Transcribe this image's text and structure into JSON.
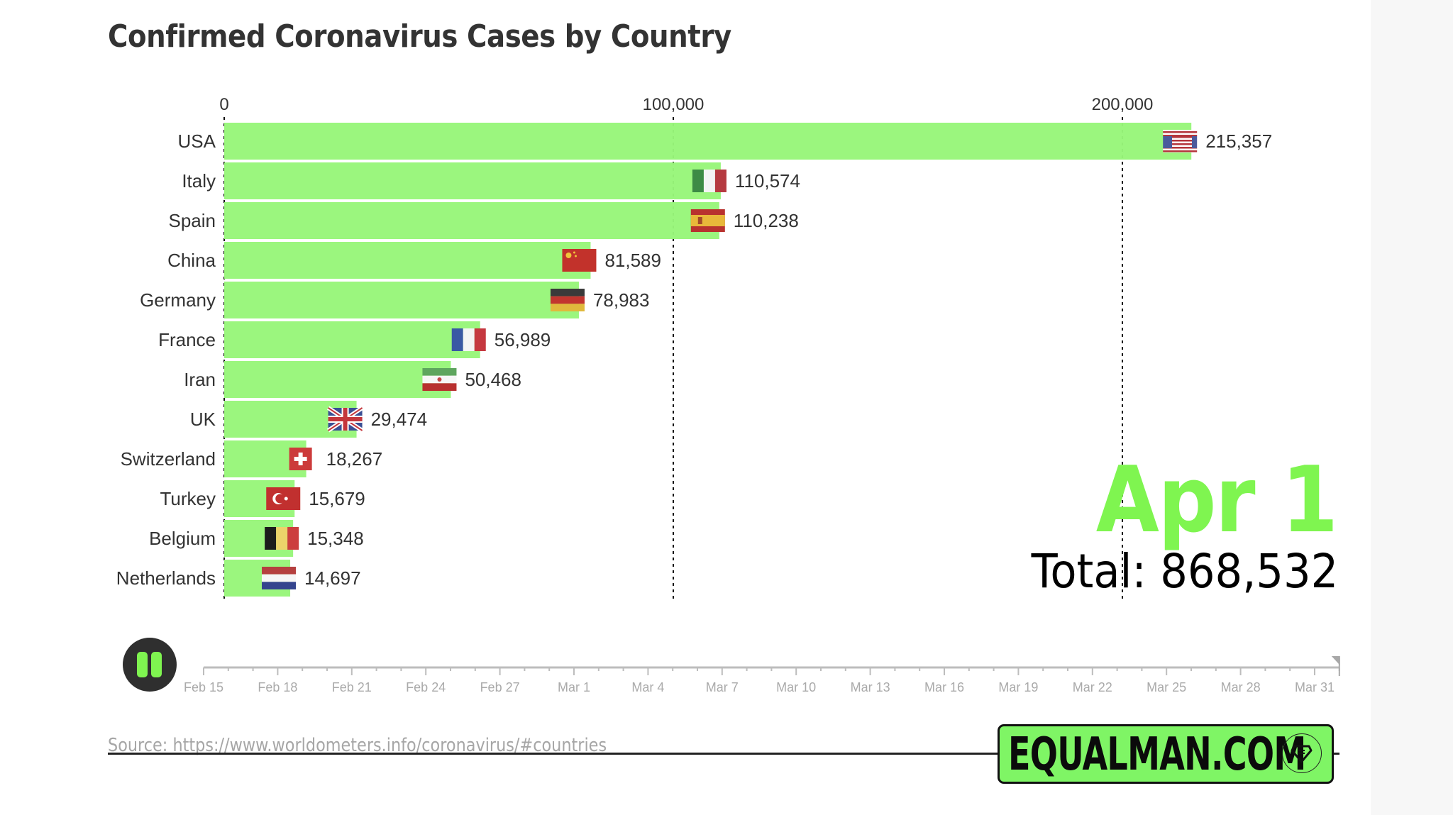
{
  "chart_data": {
    "type": "bar",
    "orientation": "horizontal",
    "title": "Confirmed Coronavirus Cases by Country",
    "categories": [
      "USA",
      "Italy",
      "Spain",
      "China",
      "Germany",
      "France",
      "Iran",
      "UK",
      "Switzerland",
      "Turkey",
      "Belgium",
      "Netherlands"
    ],
    "values": [
      215357,
      110574,
      110238,
      81589,
      78983,
      56989,
      50468,
      29474,
      18267,
      15679,
      15348,
      14697
    ],
    "value_labels": [
      "215,357",
      "110,574",
      "110,238",
      "81,589",
      "78,983",
      "56,989",
      "50,468",
      "29,474",
      "18,267",
      "15,679",
      "15,348",
      "14,697"
    ],
    "flags": [
      "us",
      "it",
      "es",
      "cn",
      "de",
      "fr",
      "ir",
      "gb",
      "ch",
      "tr",
      "be",
      "nl"
    ],
    "xlim": [
      0,
      200000
    ],
    "xticks": [
      0,
      100000,
      200000
    ],
    "xtick_labels": [
      "0",
      "100,000",
      "200,000"
    ],
    "xaxis_position": "top",
    "grid": "dashed vertical at ticks",
    "bar_color": "#98f67a",
    "xlabel": "",
    "ylabel": "",
    "current_date": "Apr 1",
    "total_label": "Total: 868,532",
    "total": 868532
  },
  "timeline": {
    "start_date": "Feb 15",
    "end_date": "Apr 1",
    "current_day_index": 46,
    "total_days": 46,
    "tick_every_days": 3,
    "labels": [
      "Feb 15",
      "Feb 18",
      "Feb 21",
      "Feb 24",
      "Feb 27",
      "Mar 1",
      "Mar 4",
      "Mar 7",
      "Mar 10",
      "Mar 13",
      "Mar 16",
      "Mar 19",
      "Mar 22",
      "Mar 25",
      "Mar 28",
      "Mar 31"
    ],
    "label_day_offsets": [
      0,
      3,
      6,
      9,
      12,
      15,
      18,
      21,
      24,
      27,
      30,
      33,
      36,
      39,
      42,
      45
    ],
    "play_state": "playing",
    "pause_icon": "pause-icon"
  },
  "source": {
    "prefix": "Source: ",
    "link_text": "https://www.worldometers.info/coronavirus/#countries"
  },
  "logo": {
    "text": "EQUALMAN.COM",
    "icon": "diamond-badge-icon"
  },
  "colors": {
    "accent_green": "#7ff550",
    "bar_green": "#98f67a",
    "text_dark": "#333333",
    "muted": "#aaaaaa"
  }
}
